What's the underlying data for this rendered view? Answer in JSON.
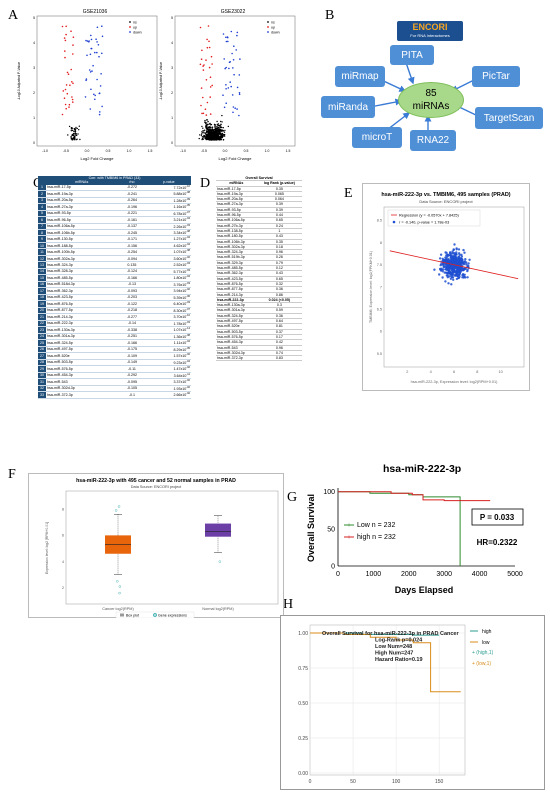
{
  "labels": {
    "A": "A",
    "B": "B",
    "C": "C",
    "D": "D",
    "E": "E",
    "F": "F",
    "G": "G",
    "H": "H"
  },
  "panelA": {
    "left": {
      "title": "GSE21036",
      "ylabel": "-Log10 Adjusted P-Value",
      "xlabel": "Log2 Fold Change",
      "xticks": [
        "-1.0",
        "-0.5",
        "0.0",
        "0.5",
        "1.0",
        "1.5"
      ],
      "yticks": [
        "0",
        "1",
        "2",
        "3",
        "4",
        "5"
      ]
    },
    "right": {
      "title": "GSE23022",
      "ylabel": "-Log10 Adjusted P-Value",
      "xlabel": "Log2 Fold Change",
      "xticks": [
        "-1.0",
        "-0.5",
        "0.0",
        "0.5",
        "1.0",
        "1.5"
      ],
      "yticks": [
        "0",
        "1",
        "2",
        "3",
        "4",
        "5"
      ]
    },
    "legend": [
      "ns",
      "up",
      "down"
    ],
    "colors": {
      "ns": "#000000",
      "up": "#e41a1c",
      "down": "#1f3fd1"
    }
  },
  "panelB": {
    "logo": "ENCORI",
    "logo_sub": "For RNA Interactomes",
    "center_count": "85",
    "center_label": "miRNAs",
    "nodes": [
      "PITA",
      "miRmap",
      "PicTar",
      "miRanda",
      "TargetScan",
      "microT",
      "RNA22"
    ]
  },
  "panelC": {
    "title": "Corr. with TMBIM6 in PRAD (33)",
    "headers": [
      "miRNAs",
      "rho",
      "p-value"
    ],
    "rows": [
      [
        "hsa-miR-17-5p",
        "-0.272",
        "7.72x10^-10"
      ],
      [
        "hsa-miR-19a-3p",
        "-0.241",
        "5.88x10^-08"
      ],
      [
        "hsa-miR-20a-5p",
        "-0.264",
        "1.28x10^-09"
      ],
      [
        "hsa-miR-27a-3p",
        "-0.196",
        "1.16x10^-05"
      ],
      [
        "hsa-miR-93-5p",
        "-0.221",
        "6.78x10^-07"
      ],
      [
        "hsa-miR-96-5p",
        "-0.161",
        "3.21x10^-04"
      ],
      [
        "hsa-miR-106a-5p",
        "-0.137",
        "2.26x10^-03"
      ],
      [
        "hsa-miR-106b-5p",
        "-0.245",
        "3.34x10^-08"
      ],
      [
        "hsa-miR-130-5p",
        "-0.171",
        "1.27x10^-04"
      ],
      [
        "hsa-miR-188-5p",
        "-0.156",
        "4.62x10^-04"
      ],
      [
        "hsa-miR-100b-5p",
        "-0.254",
        "1.07x10^-08"
      ],
      [
        "hsa-miR-302a-3p",
        "-0.094",
        "3.60x10^-02"
      ],
      [
        "hsa-miR-324-3p",
        "0.135",
        "2.52x10^-03"
      ],
      [
        "hsa-miR-328-3p",
        "-0.124",
        "5.77x10^-03"
      ],
      [
        "hsa-miR-485-5p",
        "-0.166",
        "1.80x10^-04"
      ],
      [
        "hsa-miR-518d-3p",
        "-0.13",
        "3.76x10^-03"
      ],
      [
        "hsa-miR-362-3p",
        "-0.093",
        "3.94x10^-02"
      ],
      [
        "hsa-miR-423-5p",
        "-0.203",
        "5.39x10^-06"
      ],
      [
        "hsa-miR-876-5p",
        "-0.122",
        "6.40x10^-03"
      ],
      [
        "hsa-miR-877-5p",
        "-0.218",
        "8.30x10^-07"
      ],
      [
        "hsa-miR-214-3p",
        "-0.277",
        "3.70x10^-10"
      ],
      [
        "hsa-miR-222-3p",
        "-0.14",
        "1.78x10^-03"
      ],
      [
        "hsa-miR-130a-3p",
        "-0.338",
        "1.07x10^-14"
      ],
      [
        "hsa-miR-301a-3p",
        "-0.251",
        "1.36x10^-08"
      ],
      [
        "hsa-miR-324-5p",
        "-0.166",
        "1.11x10^-04"
      ],
      [
        "hsa-miR-497-5p",
        "-0.175",
        "8.29x10^-05"
      ],
      [
        "hsa-miR-520e",
        "-0.109",
        "1.57x10^-02"
      ],
      [
        "hsa-miR-503-5p",
        "-0.149",
        "9.23x10^-04"
      ],
      [
        "hsa-miR-576-5p",
        "-0.11",
        "1.47x10^-02"
      ],
      [
        "hsa-miR-454-3p",
        "-0.292",
        "3.64x10^-11"
      ],
      [
        "hsa-miR-543",
        "-0.095",
        "3.37x10^-02"
      ],
      [
        "hsa-miR-302d-3p",
        "-0.105",
        "1.93x10^-02"
      ],
      [
        "hsa-miR-372-3p",
        "-0.1",
        "2.66x10^-02"
      ]
    ]
  },
  "panelD": {
    "title": "Overall Survival",
    "headers": [
      "miRNAs",
      "log Rank (p-value)"
    ],
    "rows": [
      [
        "hsa-miR-17-5p",
        "0.35"
      ],
      [
        "hsa-miR-19a-3p",
        "0.065"
      ],
      [
        "hsa-miR-20a-5p",
        "0.064"
      ],
      [
        "hsa-miR-27a-3p",
        "0.39"
      ],
      [
        "hsa-miR-93-5p",
        "0.39"
      ],
      [
        "hsa-miR-96-5p",
        "0.44"
      ],
      [
        "hsa-miR-106a-5p",
        "0.65"
      ],
      [
        "hsa-miR-27b-3p",
        "0.24"
      ],
      [
        "hsa-miR-138-5p",
        "1"
      ],
      [
        "hsa-miR-180-5p",
        "0.43"
      ],
      [
        "hsa-miR-106b-3p",
        "0.35"
      ],
      [
        "hsa-miR-302a-3p",
        "0.18"
      ],
      [
        "hsa-miR-324-3p",
        "0.96"
      ],
      [
        "hsa-miR-519b-3p",
        "0.26"
      ],
      [
        "hsa-miR-329-3p",
        "0.79"
      ],
      [
        "hsa-miR-485-5p",
        "0.12"
      ],
      [
        "hsa-miR-362-3p",
        "0.43"
      ],
      [
        "hsa-miR-423-5p",
        "0.65"
      ],
      [
        "hsa-miR-876-5p",
        "0.32"
      ],
      [
        "hsa-miR-877-5p",
        "0.36"
      ],
      [
        "hsa-miR-214-3p",
        "0.86"
      ],
      [
        "hsa-miR-222-3p",
        "0.024 (<0.05)"
      ],
      [
        "hsa-miR-130a-3p",
        "0.3"
      ],
      [
        "hsa-miR-301a-3p",
        "0.59"
      ],
      [
        "hsa-miR-324-5p",
        "0.36"
      ],
      [
        "hsa-miR-497-5p",
        "0.64"
      ],
      [
        "hsa-miR-520e",
        "0.81"
      ],
      [
        "hsa-miR-503-5p",
        "0.37"
      ],
      [
        "hsa-miR-576-5p",
        "0.17"
      ],
      [
        "hsa-miR-454-3p",
        "0.42"
      ],
      [
        "hsa-miR-543",
        "0.96"
      ],
      [
        "hsa-miR-302d-3p",
        "0.74"
      ],
      [
        "hsa-miR-372-3p",
        "0.83"
      ]
    ],
    "highlight_index": 21
  },
  "panelE": {
    "title": "hsa-miR-222-3p vs. TMBIM6, 495 samples (PRAD)",
    "subtitle": "Data Source: ENCORI project",
    "ylabel": "TMBIM6, Expression level: log2(FPKM+0.01)",
    "xlabel": "hsa-miR-222-3p, Expression level: log2(RPM+0.01)",
    "legend1": "Regression (y = -0.0570x + 7.8425)",
    "legend2": "r = -0.140, p-value = 1.78e-03",
    "xticks": [
      "2",
      "4",
      "6",
      "8",
      "10"
    ],
    "yticks": [
      "5.5",
      "6",
      "6.5",
      "7",
      "7.5",
      "8",
      "8.5"
    ]
  },
  "panelF": {
    "title": "hsa-miR-222-3p with 495 cancer and 52 normal samples in PRAD",
    "subtitle": "Data Source: ENCORI project",
    "ylabel": "Expression level: log2 [RPM+0.01]",
    "categories": [
      "Cancer log2(RPM)",
      "Normal log2(RPM)"
    ],
    "legend": [
      "Box plot",
      "Gene expressions"
    ],
    "yticks": [
      "2",
      "4",
      "6",
      "8"
    ]
  },
  "panelG": {
    "title": "hsa-miR-222-3p",
    "ylabel": "Overall Survival",
    "xlabel": "Days Elapsed",
    "xticks": [
      "0",
      "1000",
      "2000",
      "3000",
      "4000",
      "5000"
    ],
    "yticks": [
      "0",
      "50",
      "100"
    ],
    "legend": [
      {
        "name": "Low n = 232",
        "color": "#2e8b2e"
      },
      {
        "name": "high n = 232",
        "color": "#d62020"
      }
    ],
    "pvalue": "P = 0.033",
    "hr": "HR=0.2322"
  },
  "panelH": {
    "lines": [
      "Overall Survival for hsa-miR-222-3p in PRAD Cancer",
      "Log-Rank p=0.024",
      "Low Num=248",
      "High Num=247",
      "Hazard Ratio=0.19"
    ],
    "legend": [
      "high",
      "low",
      "+ (high,1)",
      "+ (low,1)"
    ],
    "xticks": [
      "0",
      "50",
      "100",
      "150"
    ],
    "yticks": [
      "0.00",
      "0.25",
      "0.50",
      "0.75",
      "1.00"
    ],
    "colors": {
      "high": "#2a9d8f",
      "low": "#d98c1a"
    }
  }
}
